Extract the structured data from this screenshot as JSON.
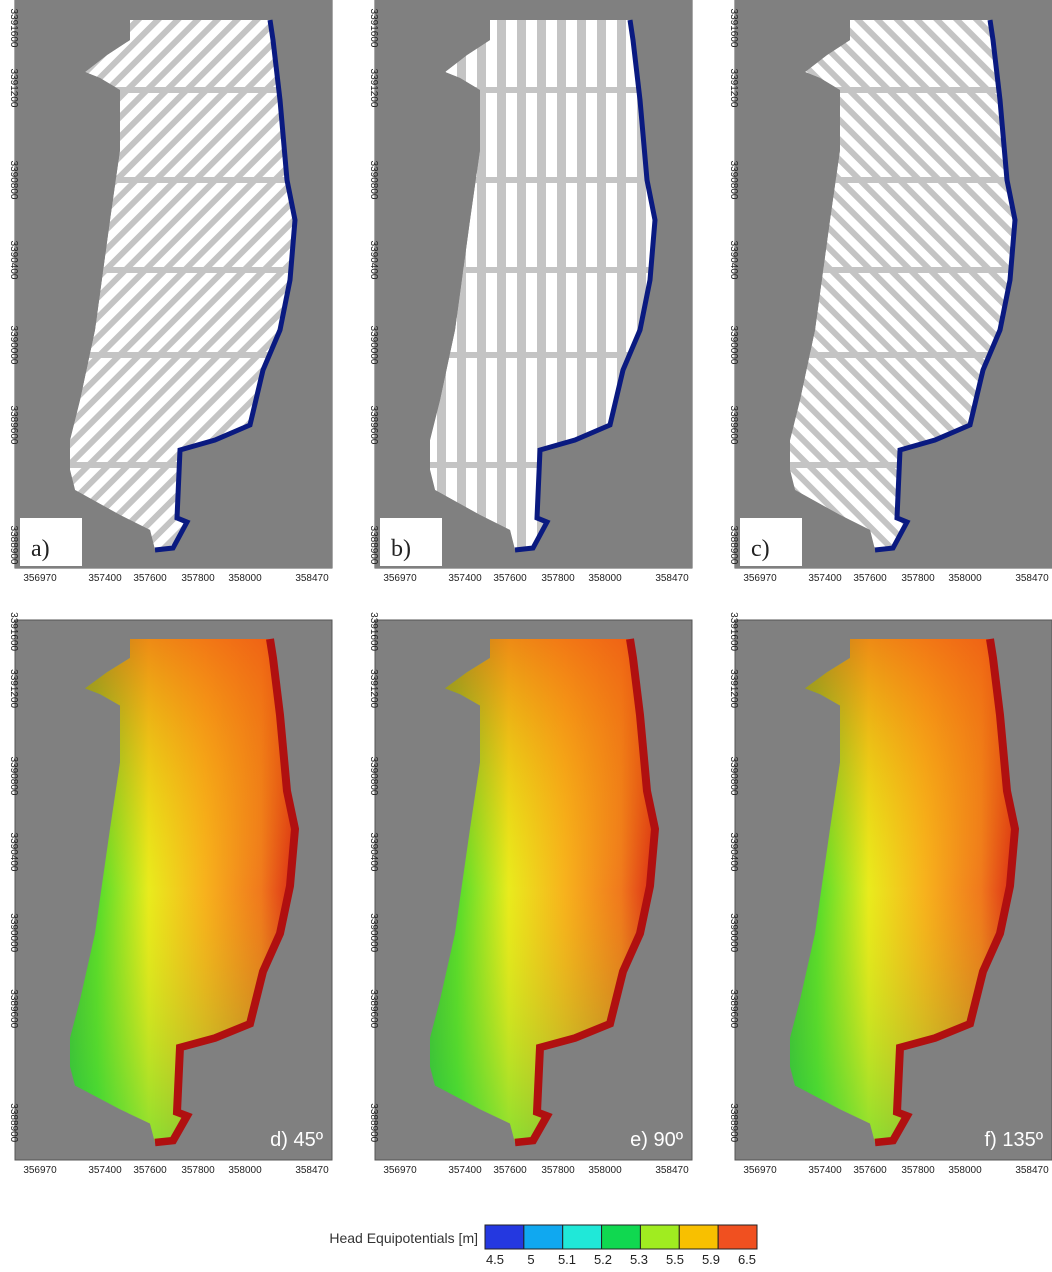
{
  "axes": {
    "x_ticks": [
      "356970",
      "357400",
      "357600",
      "357800",
      "358000",
      "358470"
    ],
    "y_ticks": [
      "3391600",
      "3391200",
      "3390800",
      "3390400",
      "3390000",
      "3389600",
      "3388900"
    ]
  },
  "panels": [
    {
      "label": "a)"
    },
    {
      "label": "b)"
    },
    {
      "label": "c)"
    },
    {
      "label": "d) 45º"
    },
    {
      "label": "e) 90º"
    },
    {
      "label": "f) 135º"
    }
  ],
  "colorbar": {
    "title": "Head Equipotentials [m]",
    "labels": [
      "4.5",
      "5",
      "5.1",
      "5.2",
      "5.3",
      "5.5",
      "5.9",
      "6.5"
    ],
    "colors": [
      "#2438e0",
      "#10a8f0",
      "#20e8d8",
      "#10d850",
      "#a0ec20",
      "#f8c000",
      "#f05020"
    ]
  }
}
